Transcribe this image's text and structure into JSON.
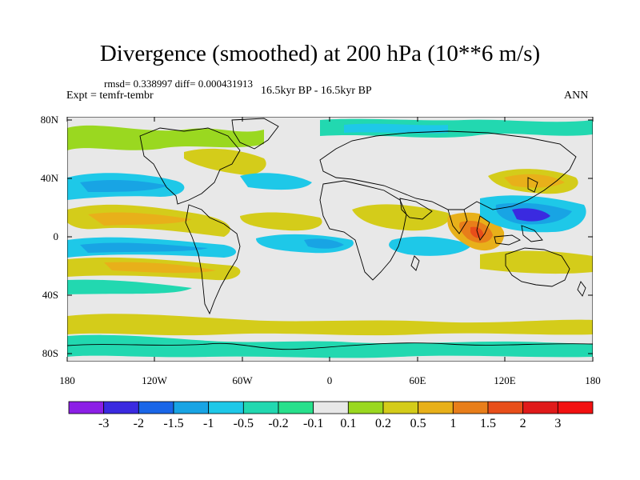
{
  "title": "Divergence (smoothed) at 200 hPa (10**6 m/s)",
  "stats": "rmsd= 0.338997 diff= 0.000431913",
  "experiment": "Expt = temfr-tembr",
  "period": "16.5kyr BP - 16.5kyr BP",
  "season": "ANN",
  "latitude_labels": [
    "80N",
    "40N",
    "0",
    "40S",
    "80S"
  ],
  "longitude_labels": [
    "180",
    "120W",
    "60W",
    "0",
    "60E",
    "120E",
    "180"
  ],
  "colorbar": {
    "labels": [
      "-3",
      "-2",
      "-1.5",
      "-1",
      "-0.5",
      "-0.2",
      "-0.1",
      "0.1",
      "0.2",
      "0.5",
      "1",
      "1.5",
      "2",
      "3"
    ],
    "colors": [
      "#8c1fe6",
      "#3a2ae0",
      "#1a66e8",
      "#18a4e4",
      "#1ec8e8",
      "#22d8b0",
      "#28e08c",
      "#e8e8e8",
      "#9ad820",
      "#d4cc1a",
      "#e8b01a",
      "#e87e1a",
      "#e84e1a",
      "#e01a1a",
      "#f21010"
    ]
  }
}
